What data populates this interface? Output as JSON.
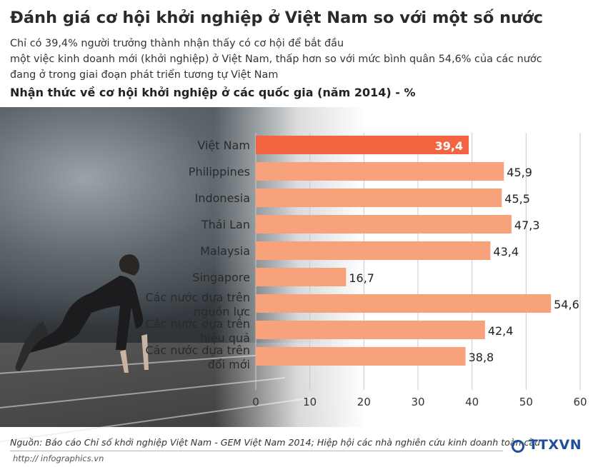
{
  "header": {
    "title": "Đánh giá cơ hội khởi nghiệp ở Việt Nam so với một số nước",
    "subtitle_lines": [
      "Chỉ có 39,4% người trưởng thành nhận thấy có cơ hội để bắt đầu",
      "một việc kinh doanh mới (khởi nghiệp) ở Việt Nam, thấp hơn so với mức bình quân 54,6% của các nước",
      "đang ở trong giai đoạn phát triển tương tự Việt Nam"
    ]
  },
  "chart_data": {
    "type": "bar",
    "orientation": "horizontal",
    "title": "Nhận thức về cơ hội khởi nghiệp ở các quốc gia (năm 2014) - %",
    "categories": [
      [
        "Việt Nam"
      ],
      [
        "Philippines"
      ],
      [
        "Indonesia"
      ],
      [
        "Thái Lan"
      ],
      [
        "Malaysia"
      ],
      [
        "Singapore"
      ],
      [
        "Các nước dựa trên",
        "nguồn lực"
      ],
      [
        "Các nước dựa trên",
        "hiệu quả"
      ],
      [
        "Các nước dựa trên",
        "đổi mới"
      ]
    ],
    "values": [
      39.4,
      45.9,
      45.5,
      47.3,
      43.4,
      16.7,
      54.6,
      42.4,
      38.8
    ],
    "value_labels": [
      "39,4",
      "45,9",
      "45,5",
      "47,3",
      "43,4",
      "16,7",
      "54,6",
      "42,4",
      "38,8"
    ],
    "xlim": [
      0,
      60
    ],
    "xticks": [
      0,
      10,
      20,
      30,
      40,
      50,
      60
    ],
    "xtick_labels": [
      "0",
      "10",
      "20",
      "30",
      "40",
      "50",
      "60"
    ],
    "grid": true,
    "colors": {
      "highlight": "#f26540",
      "bar": "#f7a27b",
      "highlight_label": "#ffffff",
      "grid": "#c9c9c9"
    },
    "highlight_index": 0
  },
  "footer": {
    "source": "Nguồn: Báo cáo Chỉ số khởi nghiệp Việt Nam - GEM Việt Nam 2014; Hiệp hội các nhà nghiên cứu kinh doanh toàn cầu",
    "url": "http:// infographics.vn",
    "logo_text": "TTXVN",
    "logo_icon": "ttxvn-logo-icon"
  }
}
